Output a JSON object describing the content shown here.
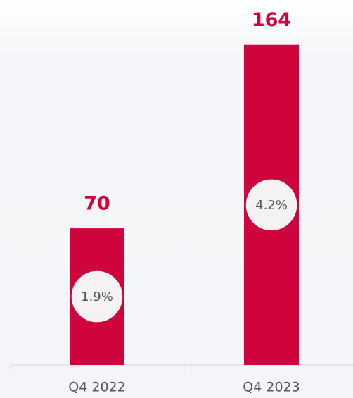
{
  "chart_data": {
    "type": "bar",
    "categories": [
      "Q4 2022",
      "Q4 2023"
    ],
    "values": [
      70,
      164
    ],
    "share_labels": [
      "1.9%",
      "4.2%"
    ],
    "color": "#d0043c"
  }
}
